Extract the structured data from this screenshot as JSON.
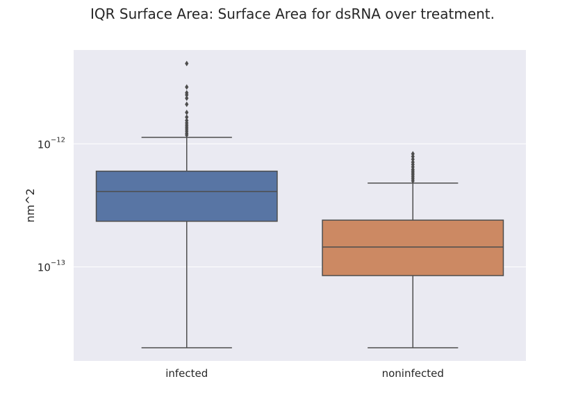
{
  "chart_data": {
    "type": "box",
    "title": "IQR Surface Area: Surface Area for dsRNA over treatment.",
    "xlabel": "",
    "ylabel": "nm^2",
    "y_scale": "log",
    "ylim": [
      1.72e-14,
      5.8e-12
    ],
    "yticks": [
      {
        "value": 1e-12,
        "base": "10",
        "exponent": "−12"
      },
      {
        "value": 1e-13,
        "base": "10",
        "exponent": "−13"
      }
    ],
    "grid": true,
    "categories": [
      "infected",
      "noninfected"
    ],
    "boxes": [
      {
        "name": "infected",
        "color": "#5875a4",
        "whisker_low": 2.2e-14,
        "q1": 2.35e-13,
        "median": 4.1e-13,
        "q3": 6e-13,
        "whisker_high": 1.13e-12,
        "outliers": [
          4.5e-12,
          2.9e-12,
          2.6e-12,
          2.5e-12,
          2.35e-12,
          2.1e-12,
          1.8e-12,
          1.65e-12,
          1.55e-12,
          1.48e-12,
          1.42e-12,
          1.37e-12,
          1.32e-12,
          1.27e-12,
          1.22e-12,
          1.18e-12
        ]
      },
      {
        "name": "noninfected",
        "color": "#cc8963",
        "whisker_low": 2.2e-14,
        "q1": 8.5e-14,
        "median": 1.45e-13,
        "q3": 2.4e-13,
        "whisker_high": 4.8e-13,
        "outliers": [
          8.3e-13,
          7.9e-13,
          7.5e-13,
          7.1e-13,
          6.8e-13,
          6.5e-13,
          6.2e-13,
          6e-13,
          5.8e-13,
          5.6e-13,
          5.4e-13,
          5.2e-13,
          5e-13
        ]
      }
    ]
  },
  "colors": {
    "plot_background": "#eaeaf2",
    "grid": "#ffffff",
    "line": "#4d4d4d"
  }
}
